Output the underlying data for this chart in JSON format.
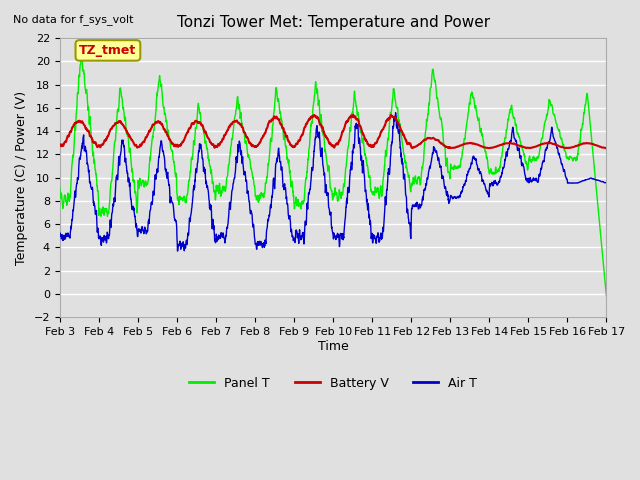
{
  "title": "Tonzi Tower Met: Temperature and Power",
  "top_left_note": "No data for f_sys_volt",
  "xlabel": "Time",
  "ylabel": "Temperature (C) / Power (V)",
  "ylim": [
    -2,
    22
  ],
  "yticks": [
    -2,
    0,
    2,
    4,
    6,
    8,
    10,
    12,
    14,
    16,
    18,
    20,
    22
  ],
  "xtick_positions": [
    0,
    1,
    2,
    3,
    4,
    5,
    6,
    7,
    8,
    9,
    10,
    11,
    12,
    13,
    14
  ],
  "xtick_labels": [
    "Feb 3",
    "Feb 4",
    "Feb 5",
    "Feb 6",
    "Feb 7",
    "Feb 8",
    "Feb 9",
    "Feb 10",
    "Feb 11",
    "Feb 12",
    "Feb 13",
    "Feb 14",
    "Feb 15",
    "Feb 16",
    "Feb 17"
  ],
  "annotation_label": "TZ_tmet",
  "annotation_color": "#cc0000",
  "annotation_bg": "#ffff99",
  "annotation_border": "#999900",
  "plot_bg": "#e0e0e0",
  "grid_color": "#ffffff",
  "colors": {
    "panel_t": "#00ee00",
    "battery_v": "#cc0000",
    "air_t": "#0000cc"
  },
  "legend_labels": [
    "Panel T",
    "Battery V",
    "Air T"
  ],
  "n_days": 14,
  "points_per_day": 144
}
